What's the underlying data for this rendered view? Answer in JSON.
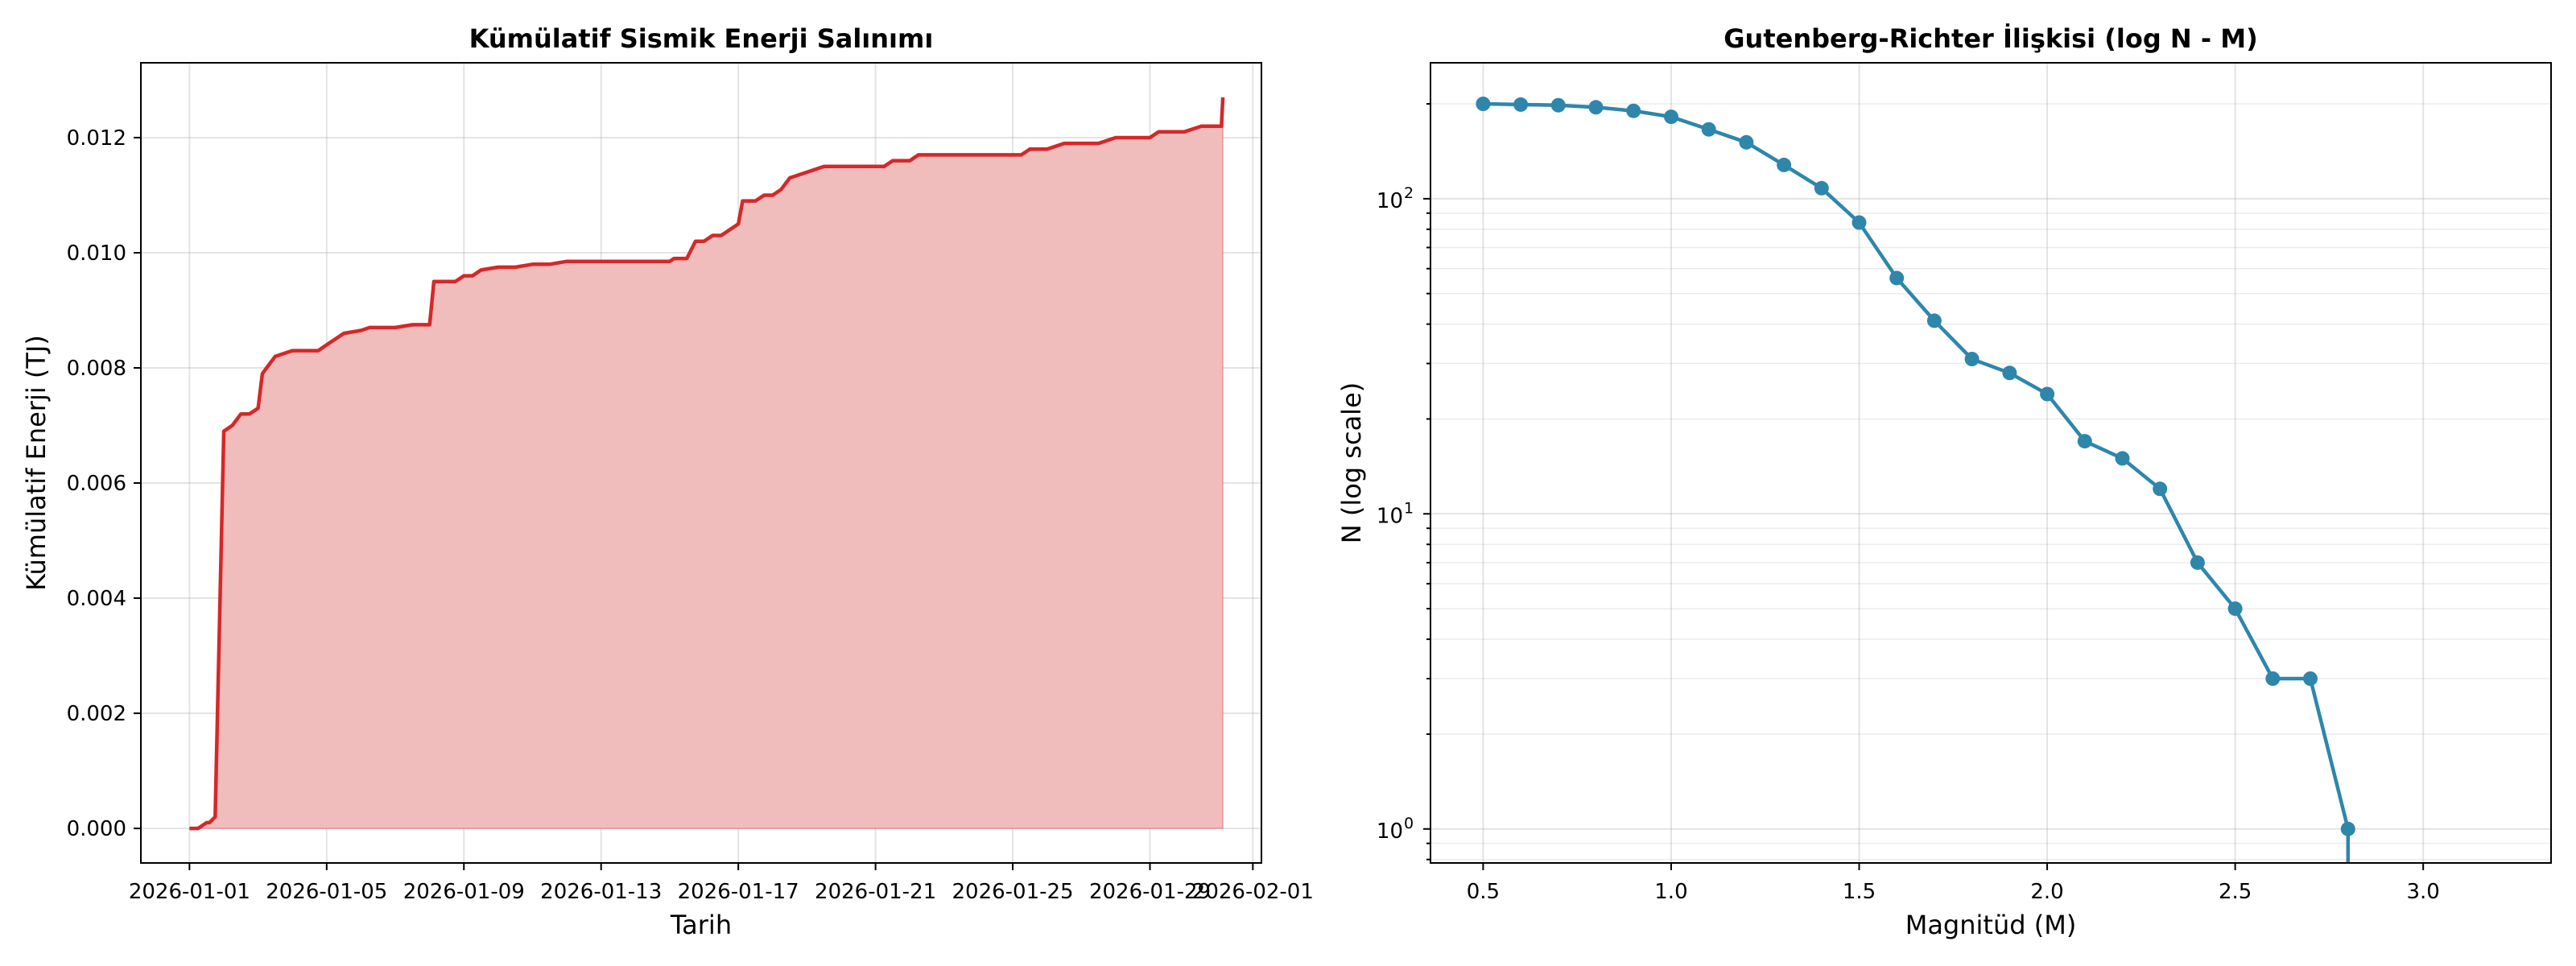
{
  "chart_data": [
    {
      "type": "area",
      "title": "Kümülatif Sismik Enerji Salınımı",
      "xlabel": "Tarih",
      "ylabel": "Kümülatif Enerji (TJ)",
      "x_ticks": [
        "2026-01-01",
        "2026-01-05",
        "2026-01-09",
        "2026-01-13",
        "2026-01-17",
        "2026-01-21",
        "2026-01-25",
        "2026-01-29",
        "2026-02-01"
      ],
      "y_ticks": [
        "0.000",
        "0.002",
        "0.004",
        "0.006",
        "0.008",
        "0.010",
        "0.012"
      ],
      "xlim": [
        "2025-12-30T14:00",
        "2026-02-01T06:00"
      ],
      "ylim": [
        -0.0006,
        0.0133
      ],
      "grid": true,
      "colors": {
        "line": "#d62728",
        "fill": "#f1bcbc"
      },
      "series": [
        {
          "x": [
            "2026-01-01T00:00",
            "2026-01-01T06:00",
            "2026-01-01T12:00",
            "2026-01-01T14:00",
            "2026-01-01T18:00",
            "2026-01-02T00:00",
            "2026-01-02T06:00",
            "2026-01-02T12:00",
            "2026-01-02T18:00",
            "2026-01-03T00:00",
            "2026-01-03T03:00",
            "2026-01-03T06:00",
            "2026-01-03T12:00",
            "2026-01-03T18:00",
            "2026-01-04T00:00",
            "2026-01-04T12:00",
            "2026-01-04T18:00",
            "2026-01-05T00:00",
            "2026-01-05T06:00",
            "2026-01-05T12:00",
            "2026-01-06T00:00",
            "2026-01-06T06:00",
            "2026-01-06T12:00",
            "2026-01-07T00:00",
            "2026-01-07T12:00",
            "2026-01-07T18:00",
            "2026-01-08T00:00",
            "2026-01-08T03:00",
            "2026-01-08T12:00",
            "2026-01-08T18:00",
            "2026-01-09T00:00",
            "2026-01-09T06:00",
            "2026-01-09T12:00",
            "2026-01-10T00:00",
            "2026-01-10T12:00",
            "2026-01-11T00:00",
            "2026-01-11T12:00",
            "2026-01-12T00:00",
            "2026-01-12T12:00",
            "2026-01-13T00:00",
            "2026-01-14T00:00",
            "2026-01-15T00:00",
            "2026-01-15T03:00",
            "2026-01-15T12:00",
            "2026-01-15T18:00",
            "2026-01-16T00:00",
            "2026-01-16T06:00",
            "2026-01-16T12:00",
            "2026-01-16T18:00",
            "2026-01-17T00:00",
            "2026-01-17T03:00",
            "2026-01-17T12:00",
            "2026-01-17T18:00",
            "2026-01-18T00:00",
            "2026-01-18T06:00",
            "2026-01-18T12:00",
            "2026-01-19T00:00",
            "2026-01-19T12:00",
            "2026-01-20T00:00",
            "2026-01-20T12:00",
            "2026-01-21T00:00",
            "2026-01-21T06:00",
            "2026-01-21T12:00",
            "2026-01-22T00:00",
            "2026-01-22T06:00",
            "2026-01-22T12:00",
            "2026-01-23T00:00",
            "2026-01-24T00:00",
            "2026-01-24T12:00",
            "2026-01-25T00:00",
            "2026-01-25T06:00",
            "2026-01-25T12:00",
            "2026-01-26T00:00",
            "2026-01-26T12:00",
            "2026-01-27T00:00",
            "2026-01-27T06:00",
            "2026-01-27T12:00",
            "2026-01-28T00:00",
            "2026-01-28T12:00",
            "2026-01-29T00:00",
            "2026-01-29T06:00",
            "2026-01-29T12:00",
            "2026-01-30T00:00",
            "2026-01-30T12:00",
            "2026-01-31T00:00",
            "2026-01-31T02:00",
            "2026-01-31T03:00"
          ],
          "values": [
            0.0,
            0.0,
            0.0001,
            0.0001,
            0.0002,
            0.0069,
            0.007,
            0.0072,
            0.0072,
            0.0073,
            0.0079,
            0.008,
            0.0082,
            0.00825,
            0.0083,
            0.0083,
            0.0083,
            0.0084,
            0.0085,
            0.0086,
            0.00865,
            0.0087,
            0.0087,
            0.0087,
            0.00875,
            0.00875,
            0.00875,
            0.0095,
            0.0095,
            0.0095,
            0.0096,
            0.0096,
            0.0097,
            0.00975,
            0.00975,
            0.0098,
            0.0098,
            0.00985,
            0.00985,
            0.00985,
            0.00985,
            0.00985,
            0.0099,
            0.0099,
            0.0102,
            0.0102,
            0.0103,
            0.0103,
            0.0104,
            0.0105,
            0.0109,
            0.0109,
            0.011,
            0.011,
            0.0111,
            0.0113,
            0.0114,
            0.0115,
            0.0115,
            0.0115,
            0.0115,
            0.0115,
            0.0116,
            0.0116,
            0.0117,
            0.0117,
            0.0117,
            0.0117,
            0.0117,
            0.0117,
            0.0117,
            0.0118,
            0.0118,
            0.0119,
            0.0119,
            0.0119,
            0.0119,
            0.012,
            0.012,
            0.012,
            0.0121,
            0.0121,
            0.0121,
            0.0122,
            0.0122,
            0.0122,
            0.0127
          ]
        }
      ]
    },
    {
      "type": "line",
      "title": "Gutenberg-Richter İlişkisi (log N - M)",
      "xlabel": "Magnitüd (M)",
      "ylabel": "N (log scale)",
      "x_ticks": [
        "0.5",
        "1.0",
        "1.5",
        "2.0",
        "2.5",
        "3.0"
      ],
      "y_ticks": [
        "10",
        "10",
        "10"
      ],
      "y_tick_exponents": [
        "0",
        "1",
        "2"
      ],
      "xlim": [
        0.36,
        3.34
      ],
      "ylim": [
        0.78,
        270
      ],
      "y_scale": "log",
      "grid": true,
      "colors": {
        "line": "#2e86ab"
      },
      "series": [
        {
          "x": [
            0.5,
            0.6,
            0.7,
            0.8,
            0.9,
            1.0,
            1.1,
            1.2,
            1.3,
            1.4,
            1.5,
            1.6,
            1.7,
            1.8,
            1.9,
            2.0,
            2.1,
            2.2,
            2.3,
            2.4,
            2.5,
            2.6,
            2.7,
            2.8
          ],
          "values": [
            200,
            199,
            198,
            195,
            190,
            182,
            166,
            151,
            128,
            108,
            84,
            56,
            41,
            31,
            28,
            24,
            17,
            15,
            12,
            7,
            5,
            3,
            3,
            1
          ]
        }
      ]
    }
  ]
}
